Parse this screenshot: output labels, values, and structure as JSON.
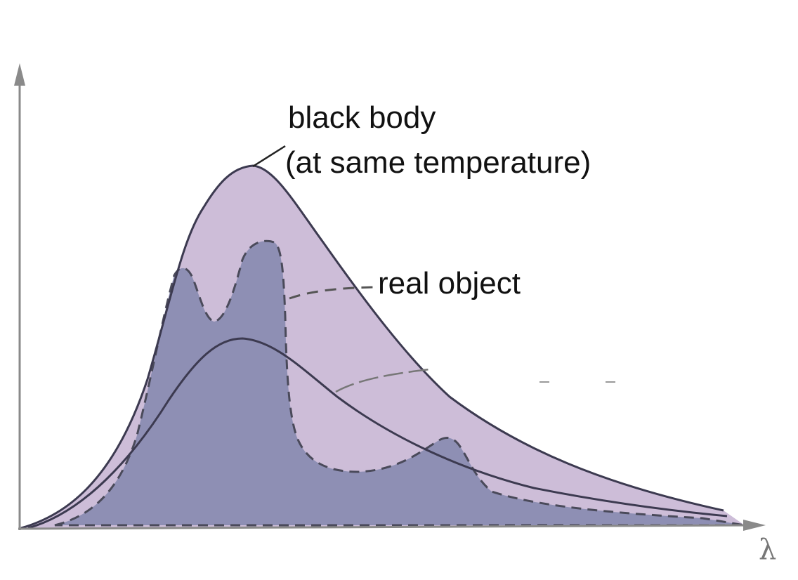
{
  "labels": {
    "black_body_line1": "black body",
    "black_body_line2": "(at same temperature)",
    "real_object": "real object",
    "x_axis": "λ"
  },
  "colors": {
    "background": "#ffffff",
    "black_body_fill": "#cdbdd8",
    "real_object_fill": "#8e8fb4",
    "curve_stroke": "#3c3a50",
    "axis_stroke": "#8a8a8a",
    "text": "#111111"
  }
}
